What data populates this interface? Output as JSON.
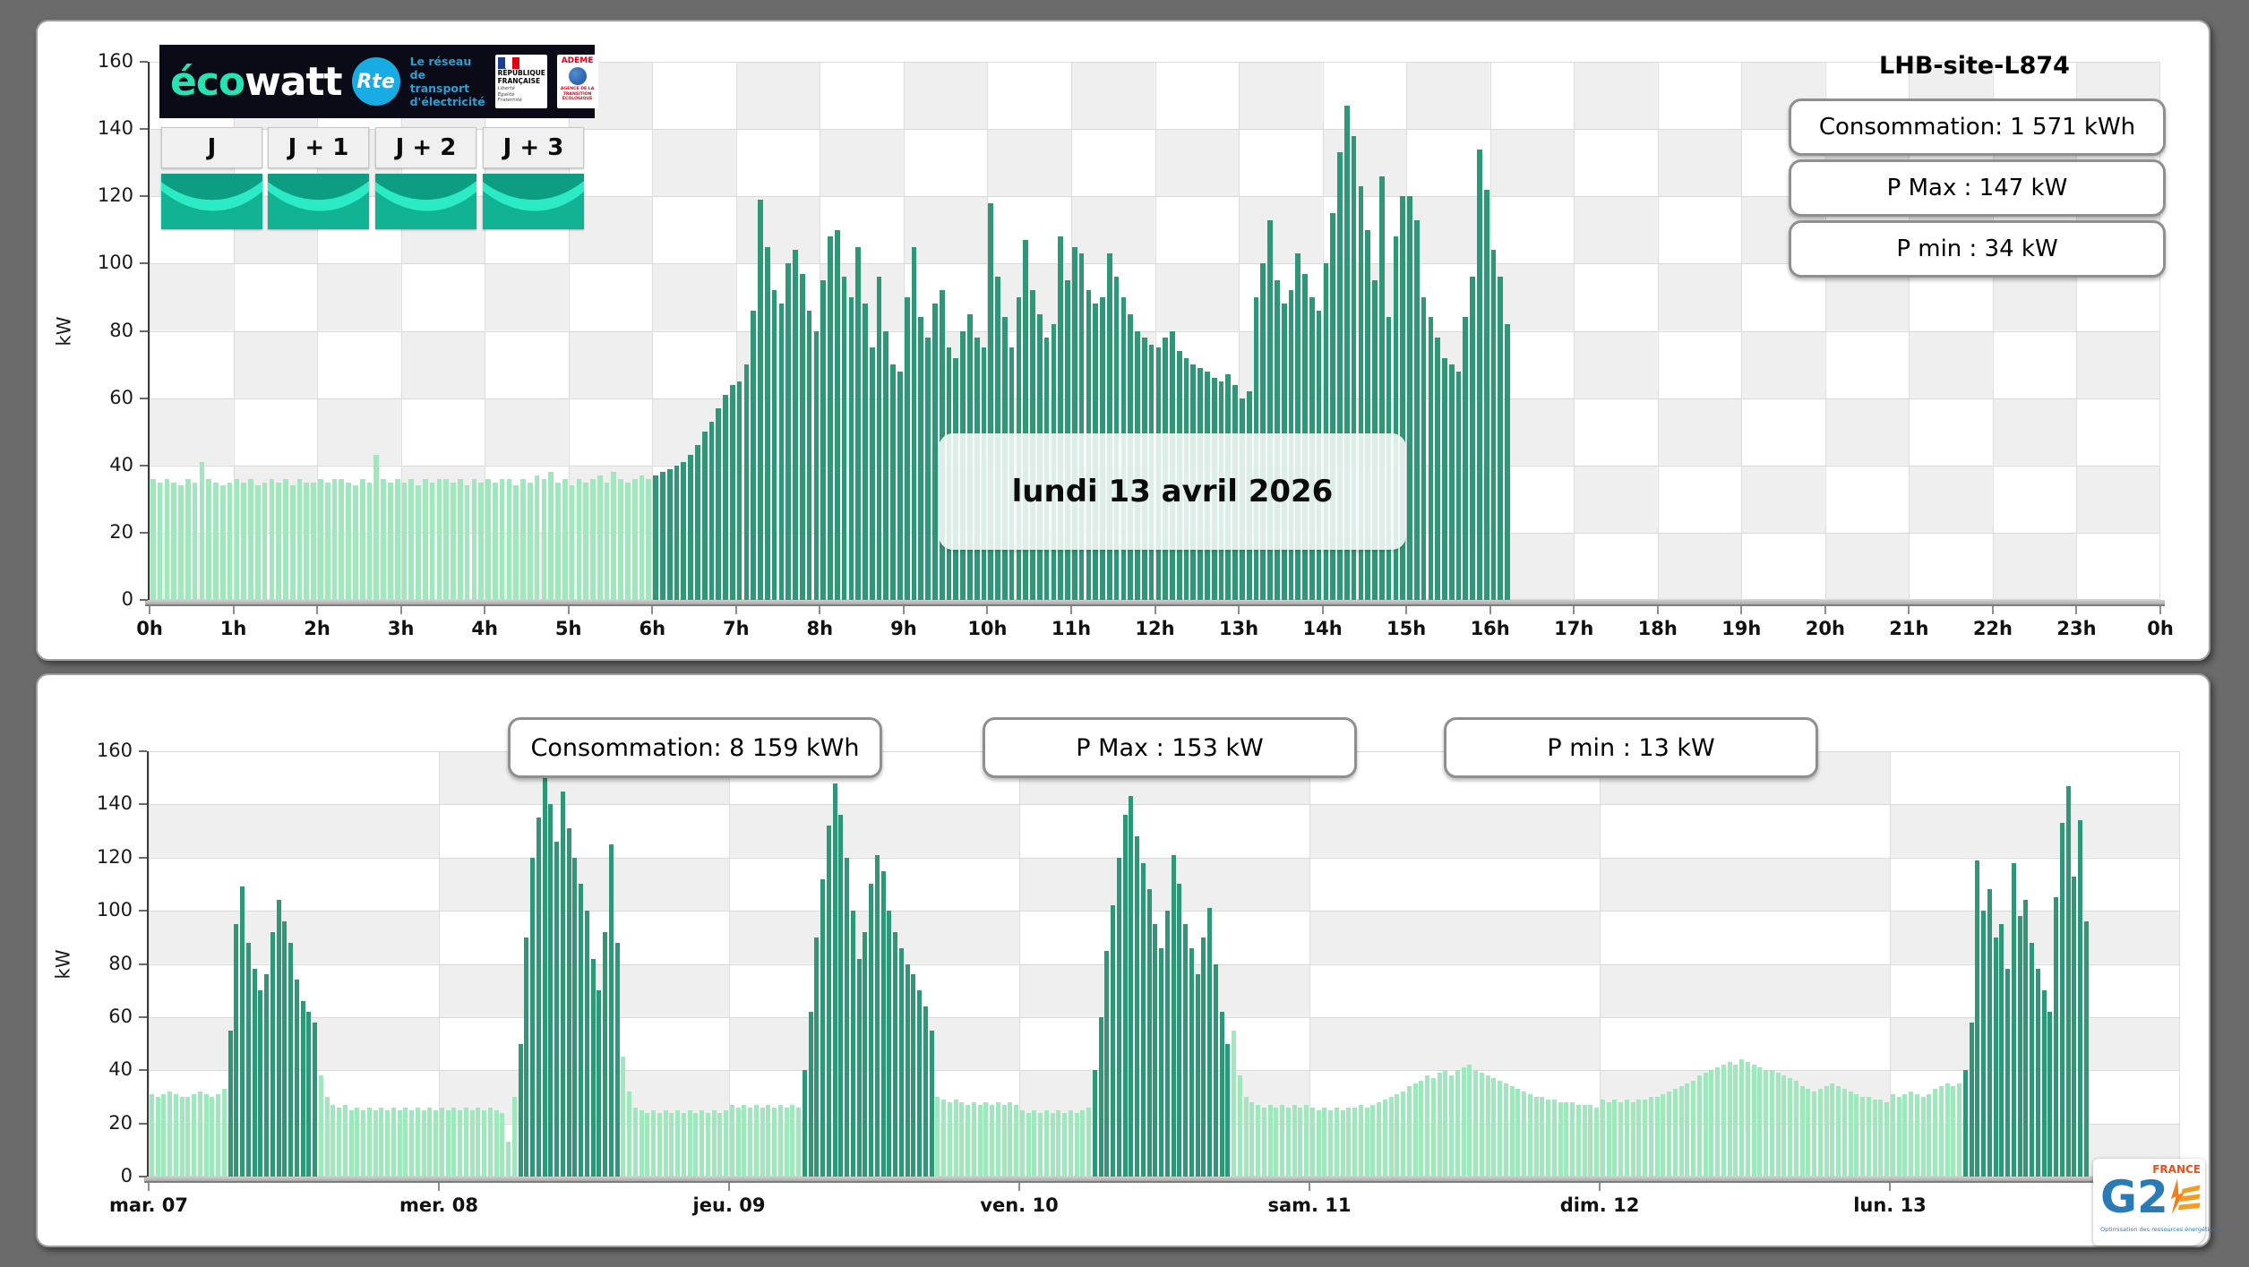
{
  "site": {
    "title": "LHB-site-L874"
  },
  "ecowatt": {
    "brand_eco": "éco",
    "brand_watt": "watt",
    "rte_abbr": "Rte",
    "rte_lines": [
      "Le réseau",
      "de transport",
      "d'électricité"
    ],
    "rf_lines": [
      "RÉPUBLIQUE",
      "FRANÇAISE"
    ],
    "rf_motto": [
      "Liberté",
      "Égalité",
      "Fraternité"
    ],
    "ademe": "ADEME",
    "ademe_sub": "AGENCE DE LA TRANSITION ÉCOLOGIQUE"
  },
  "day_buttons": [
    {
      "label": "J"
    },
    {
      "label": "J + 1"
    },
    {
      "label": "J + 2"
    },
    {
      "label": "J + 3"
    }
  ],
  "top_chart": {
    "title": "LHB-site-L874",
    "consumption": "Consommation: 1 571 kWh",
    "p_max": "P Max :  147 kW",
    "p_min": "P min : 34 kW",
    "date_label": "lundi 13 avril 2026",
    "ylabel": "kW"
  },
  "bottom_chart": {
    "consumption": "Consommation: 8 159 kWh",
    "p_max": "P Max :  153 kW",
    "p_min": "P min : 13 kW",
    "ylabel": "kW"
  },
  "footer_logo": {
    "brand": "G2",
    "country": "FRANCE",
    "tagline": "Optimisation des ressources énergétiques"
  },
  "colors": {
    "off_peak_bar": "#9fe7bd",
    "peak_bar": "#2e9778",
    "cell_white": "#ffffff",
    "cell_gray": "#efefef",
    "grid_line": "#d9d9d9"
  },
  "chart_data": [
    {
      "id": "daily",
      "type": "bar",
      "title": "lundi 13 avril 2026",
      "unit": "kW",
      "ylabel": "kW",
      "ylim": [
        0,
        160
      ],
      "ytick_step": 20,
      "grid": "checkerboard 1h x 20kW",
      "legend_position": "none",
      "x_tick_labels": [
        "0h",
        "1h",
        "2h",
        "3h",
        "4h",
        "5h",
        "6h",
        "7h",
        "8h",
        "9h",
        "10h",
        "11h",
        "12h",
        "13h",
        "14h",
        "15h",
        "16h",
        "17h",
        "18h",
        "19h",
        "20h",
        "21h",
        "22h",
        "23h",
        "0h"
      ],
      "resolution_minutes": 5,
      "start_hour": 0,
      "peak_from_hour": 6,
      "peak_to_hour": 16.25,
      "p_max_kw": 147,
      "p_min_kw": 34,
      "consumption_kwh": 1571,
      "values": [
        36,
        35,
        36,
        35,
        34,
        36,
        35,
        41,
        36,
        35,
        34,
        35,
        36,
        35,
        36,
        34,
        35,
        36,
        35,
        36,
        34,
        36,
        35,
        35,
        36,
        35,
        36,
        36,
        35,
        34,
        36,
        35,
        43,
        36,
        35,
        36,
        35,
        36,
        34,
        36,
        35,
        36,
        36,
        35,
        36,
        34,
        36,
        35,
        36,
        35,
        36,
        36,
        34,
        36,
        35,
        37,
        36,
        38,
        35,
        36,
        34,
        36,
        35,
        36,
        37,
        35,
        38,
        36,
        35,
        36,
        37,
        36,
        37,
        38,
        39,
        40,
        41,
        43,
        46,
        50,
        53,
        57,
        61,
        64,
        65,
        70,
        86,
        119,
        105,
        92,
        88,
        100,
        104,
        97,
        86,
        80,
        95,
        108,
        110,
        96,
        90,
        105,
        88,
        75,
        96,
        80,
        70,
        68,
        90,
        105,
        84,
        78,
        88,
        92,
        75,
        72,
        80,
        85,
        78,
        75,
        118,
        96,
        84,
        75,
        90,
        107,
        92,
        85,
        78,
        82,
        108,
        95,
        105,
        103,
        92,
        88,
        90,
        103,
        96,
        90,
        85,
        80,
        78,
        76,
        75,
        78,
        80,
        74,
        72,
        70,
        69,
        68,
        66,
        65,
        67,
        64,
        60,
        62,
        90,
        100,
        113,
        95,
        88,
        92,
        103,
        97,
        90,
        86,
        100,
        115,
        133,
        147,
        138,
        123,
        110,
        95,
        126,
        84,
        108,
        120,
        120,
        113,
        90,
        84,
        78,
        72,
        70,
        68,
        84,
        96,
        134,
        122,
        104,
        96,
        82
      ]
    },
    {
      "id": "weekly",
      "type": "bar",
      "unit": "kW",
      "ylabel": "kW",
      "ylim": [
        0,
        160
      ],
      "ytick_step": 20,
      "grid": "checkerboard 1day x 20kW",
      "legend_position": "none",
      "resolution_minutes": 30,
      "p_max_kw": 153,
      "p_min_kw": 13,
      "consumption_kwh": 8159,
      "days": [
        {
          "label": "mar. 07",
          "peak_from": 6.5,
          "peak_to": 14,
          "values": [
            31,
            30,
            31,
            32,
            31,
            30,
            30,
            31,
            32,
            31,
            30,
            31,
            33,
            55,
            95,
            109,
            88,
            78,
            70,
            76,
            92,
            104,
            96,
            88,
            74,
            66,
            62,
            58,
            38,
            30,
            27,
            26,
            27,
            25,
            26,
            25,
            26,
            25,
            26,
            25,
            26,
            25,
            26,
            25,
            26,
            25,
            26,
            25
          ]
        },
        {
          "label": "mer. 08",
          "peak_from": 6.5,
          "peak_to": 15,
          "values": [
            26,
            25,
            26,
            25,
            26,
            25,
            26,
            25,
            26,
            25,
            24,
            13,
            30,
            50,
            90,
            120,
            135,
            153,
            140,
            126,
            145,
            131,
            120,
            110,
            100,
            82,
            70,
            92,
            125,
            88,
            45,
            32,
            26,
            25,
            24,
            25,
            24,
            25,
            24,
            25,
            24,
            25,
            24,
            25,
            24,
            25,
            24,
            25
          ]
        },
        {
          "label": "jeu. 09",
          "peak_from": 6,
          "peak_to": 17,
          "values": [
            27,
            26,
            27,
            26,
            27,
            26,
            27,
            26,
            27,
            26,
            27,
            26,
            40,
            62,
            90,
            112,
            132,
            148,
            136,
            120,
            100,
            82,
            92,
            110,
            121,
            115,
            100,
            92,
            86,
            80,
            76,
            70,
            64,
            55,
            30,
            29,
            28,
            29,
            28,
            27,
            28,
            27,
            28,
            27,
            28,
            27,
            28,
            27
          ]
        },
        {
          "label": "ven. 10",
          "peak_from": 6,
          "peak_to": 17.5,
          "values": [
            25,
            24,
            25,
            24,
            25,
            24,
            25,
            24,
            25,
            24,
            25,
            26,
            40,
            60,
            85,
            102,
            120,
            136,
            143,
            128,
            118,
            108,
            95,
            86,
            100,
            121,
            110,
            95,
            86,
            76,
            90,
            101,
            80,
            62,
            50,
            55,
            38,
            30,
            28,
            27,
            26,
            27,
            26,
            27,
            26,
            27,
            26,
            27
          ]
        },
        {
          "label": "sam. 11",
          "peak_from": null,
          "peak_to": null,
          "values": [
            26,
            25,
            26,
            25,
            26,
            25,
            26,
            26,
            27,
            26,
            27,
            28,
            29,
            30,
            31,
            32,
            34,
            35,
            36,
            38,
            37,
            39,
            40,
            38,
            40,
            41,
            42,
            40,
            39,
            38,
            37,
            36,
            35,
            34,
            33,
            32,
            31,
            30,
            30,
            29,
            29,
            28,
            28,
            28,
            27,
            27,
            27,
            26
          ]
        },
        {
          "label": "dim. 12",
          "peak_from": null,
          "peak_to": null,
          "values": [
            29,
            28,
            29,
            28,
            29,
            28,
            29,
            29,
            30,
            30,
            31,
            32,
            33,
            34,
            35,
            36,
            38,
            39,
            40,
            41,
            42,
            43,
            42,
            44,
            43,
            42,
            41,
            40,
            40,
            39,
            38,
            37,
            36,
            34,
            33,
            32,
            33,
            34,
            35,
            34,
            33,
            32,
            31,
            30,
            30,
            29,
            29,
            28
          ]
        },
        {
          "label": "lun. 13",
          "peak_from": 6,
          "peak_to": 16.5,
          "values": [
            31,
            30,
            31,
            32,
            31,
            30,
            31,
            33,
            34,
            35,
            34,
            35,
            40,
            58,
            119,
            100,
            108,
            90,
            95,
            78,
            118,
            98,
            104,
            88,
            78,
            70,
            62,
            105,
            133,
            147,
            113,
            134,
            96,
            null,
            null,
            null,
            null,
            null,
            null,
            null,
            null,
            null,
            null,
            null,
            null,
            null,
            null,
            null
          ]
        }
      ]
    }
  ]
}
